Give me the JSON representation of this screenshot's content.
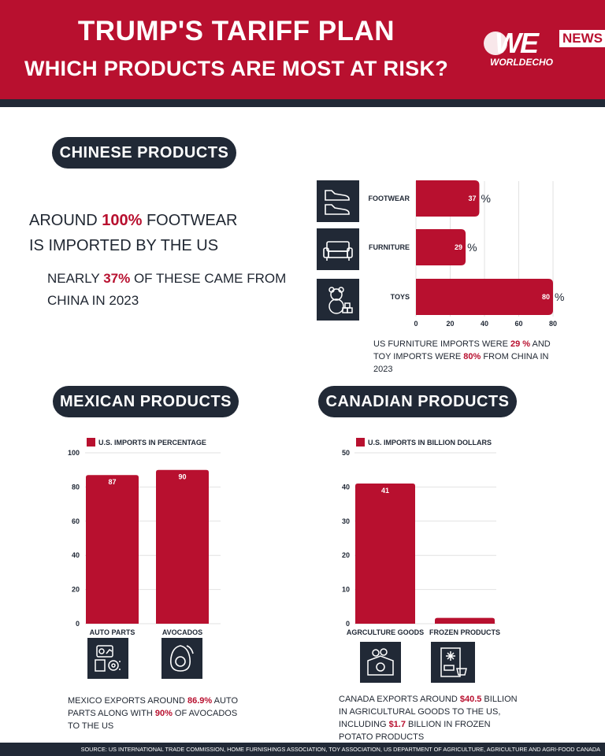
{
  "header": {
    "title_line1": "TRUMP'S TARIFF PLAN",
    "title_line2": "WHICH PRODUCTS ARE MOST AT RISK?",
    "logo_main": "WE",
    "logo_badge": "NEWS",
    "logo_sub": "WORLDECHO"
  },
  "chinese": {
    "heading": "CHINESE PRODUCTS",
    "line1_pre": "AROUND ",
    "line1_highlight": "100%",
    "line1_post": " FOOTWEAR",
    "line2": "IS IMPORTED BY THE US",
    "line3_pre": "NEARLY ",
    "line3_highlight": "37%",
    "line3_post": " OF THESE CAME FROM",
    "line4": "CHINA IN 2023",
    "note_pre": "US FURNITURE IMPORTS WERE ",
    "note_h1": "29 %",
    "note_mid": "  AND TOY IMPORTS WERE ",
    "note_h2": "80%",
    "note_post": " FROM CHINA  IN 2023"
  },
  "mexican": {
    "heading": "MEXICAN PRODUCTS",
    "note_pre": "MEXICO EXPORTS AROUND ",
    "note_h1": "86.9%",
    "note_mid": " AUTO PARTS ALONG WITH ",
    "note_h2": "90%",
    "note_post": " OF AVOCADOS TO THE US"
  },
  "canadian": {
    "heading": "CANADIAN PRODUCTS",
    "note_pre": "CANADA EXPORTS AROUND ",
    "note_h1": "$40.5",
    "note_mid": " BILLION IN AGRICULTURAL GOODS TO THE US, INCLUDING ",
    "note_h2": "$1.7",
    "note_post": " BILLION IN FROZEN POTATO PRODUCTS"
  },
  "footer": {
    "source": "SOURCE: US INTERNATIONAL TRADE COMMISSION, HOME FURNISHINGS ASSOCIATION,  TOY ASSOCIATION,  US DEPARTMENT OF AGRICULTURE,  AGRICULTURE AND AGRI-FOOD CANADA"
  },
  "colors": {
    "accent": "#b8102f",
    "dark": "#212936",
    "text": "#1f2631"
  },
  "icons": {
    "china": [
      "sneaker-icon",
      "sofa-icon",
      "teddy-bear-icon"
    ],
    "mexico": [
      "car-parts-icon",
      "avocado-icon"
    ],
    "canada": [
      "grocery-box-icon",
      "frozen-bag-icon"
    ]
  },
  "chart_data": [
    {
      "type": "bar",
      "orientation": "horizontal",
      "categories": [
        "FOOTWEAR",
        "FURNITURE",
        "TOYS"
      ],
      "values": [
        37,
        29,
        80
      ],
      "unit": "%",
      "xlim": [
        0,
        80
      ],
      "ticks": [
        0,
        20,
        40,
        60,
        80
      ],
      "grid": true
    },
    {
      "type": "bar",
      "categories": [
        "AUTO PARTS",
        "AVOCADOS"
      ],
      "values": [
        87,
        90
      ],
      "legend": "U.S. IMPORTS IN PERCENTAGE",
      "ylim": [
        0,
        100
      ],
      "ticks": [
        0,
        20,
        40,
        60,
        80,
        100
      ],
      "grid": true
    },
    {
      "type": "bar",
      "categories": [
        "AGRCULTURE GOODS",
        "FROZEN PRODUCTS"
      ],
      "values": [
        41,
        1.7
      ],
      "labels": [
        "41",
        ""
      ],
      "legend": "U.S. IMPORTS IN BILLION DOLLARS",
      "ylim": [
        0,
        50
      ],
      "ticks": [
        0,
        10,
        20,
        30,
        40,
        50
      ],
      "grid": true
    }
  ]
}
